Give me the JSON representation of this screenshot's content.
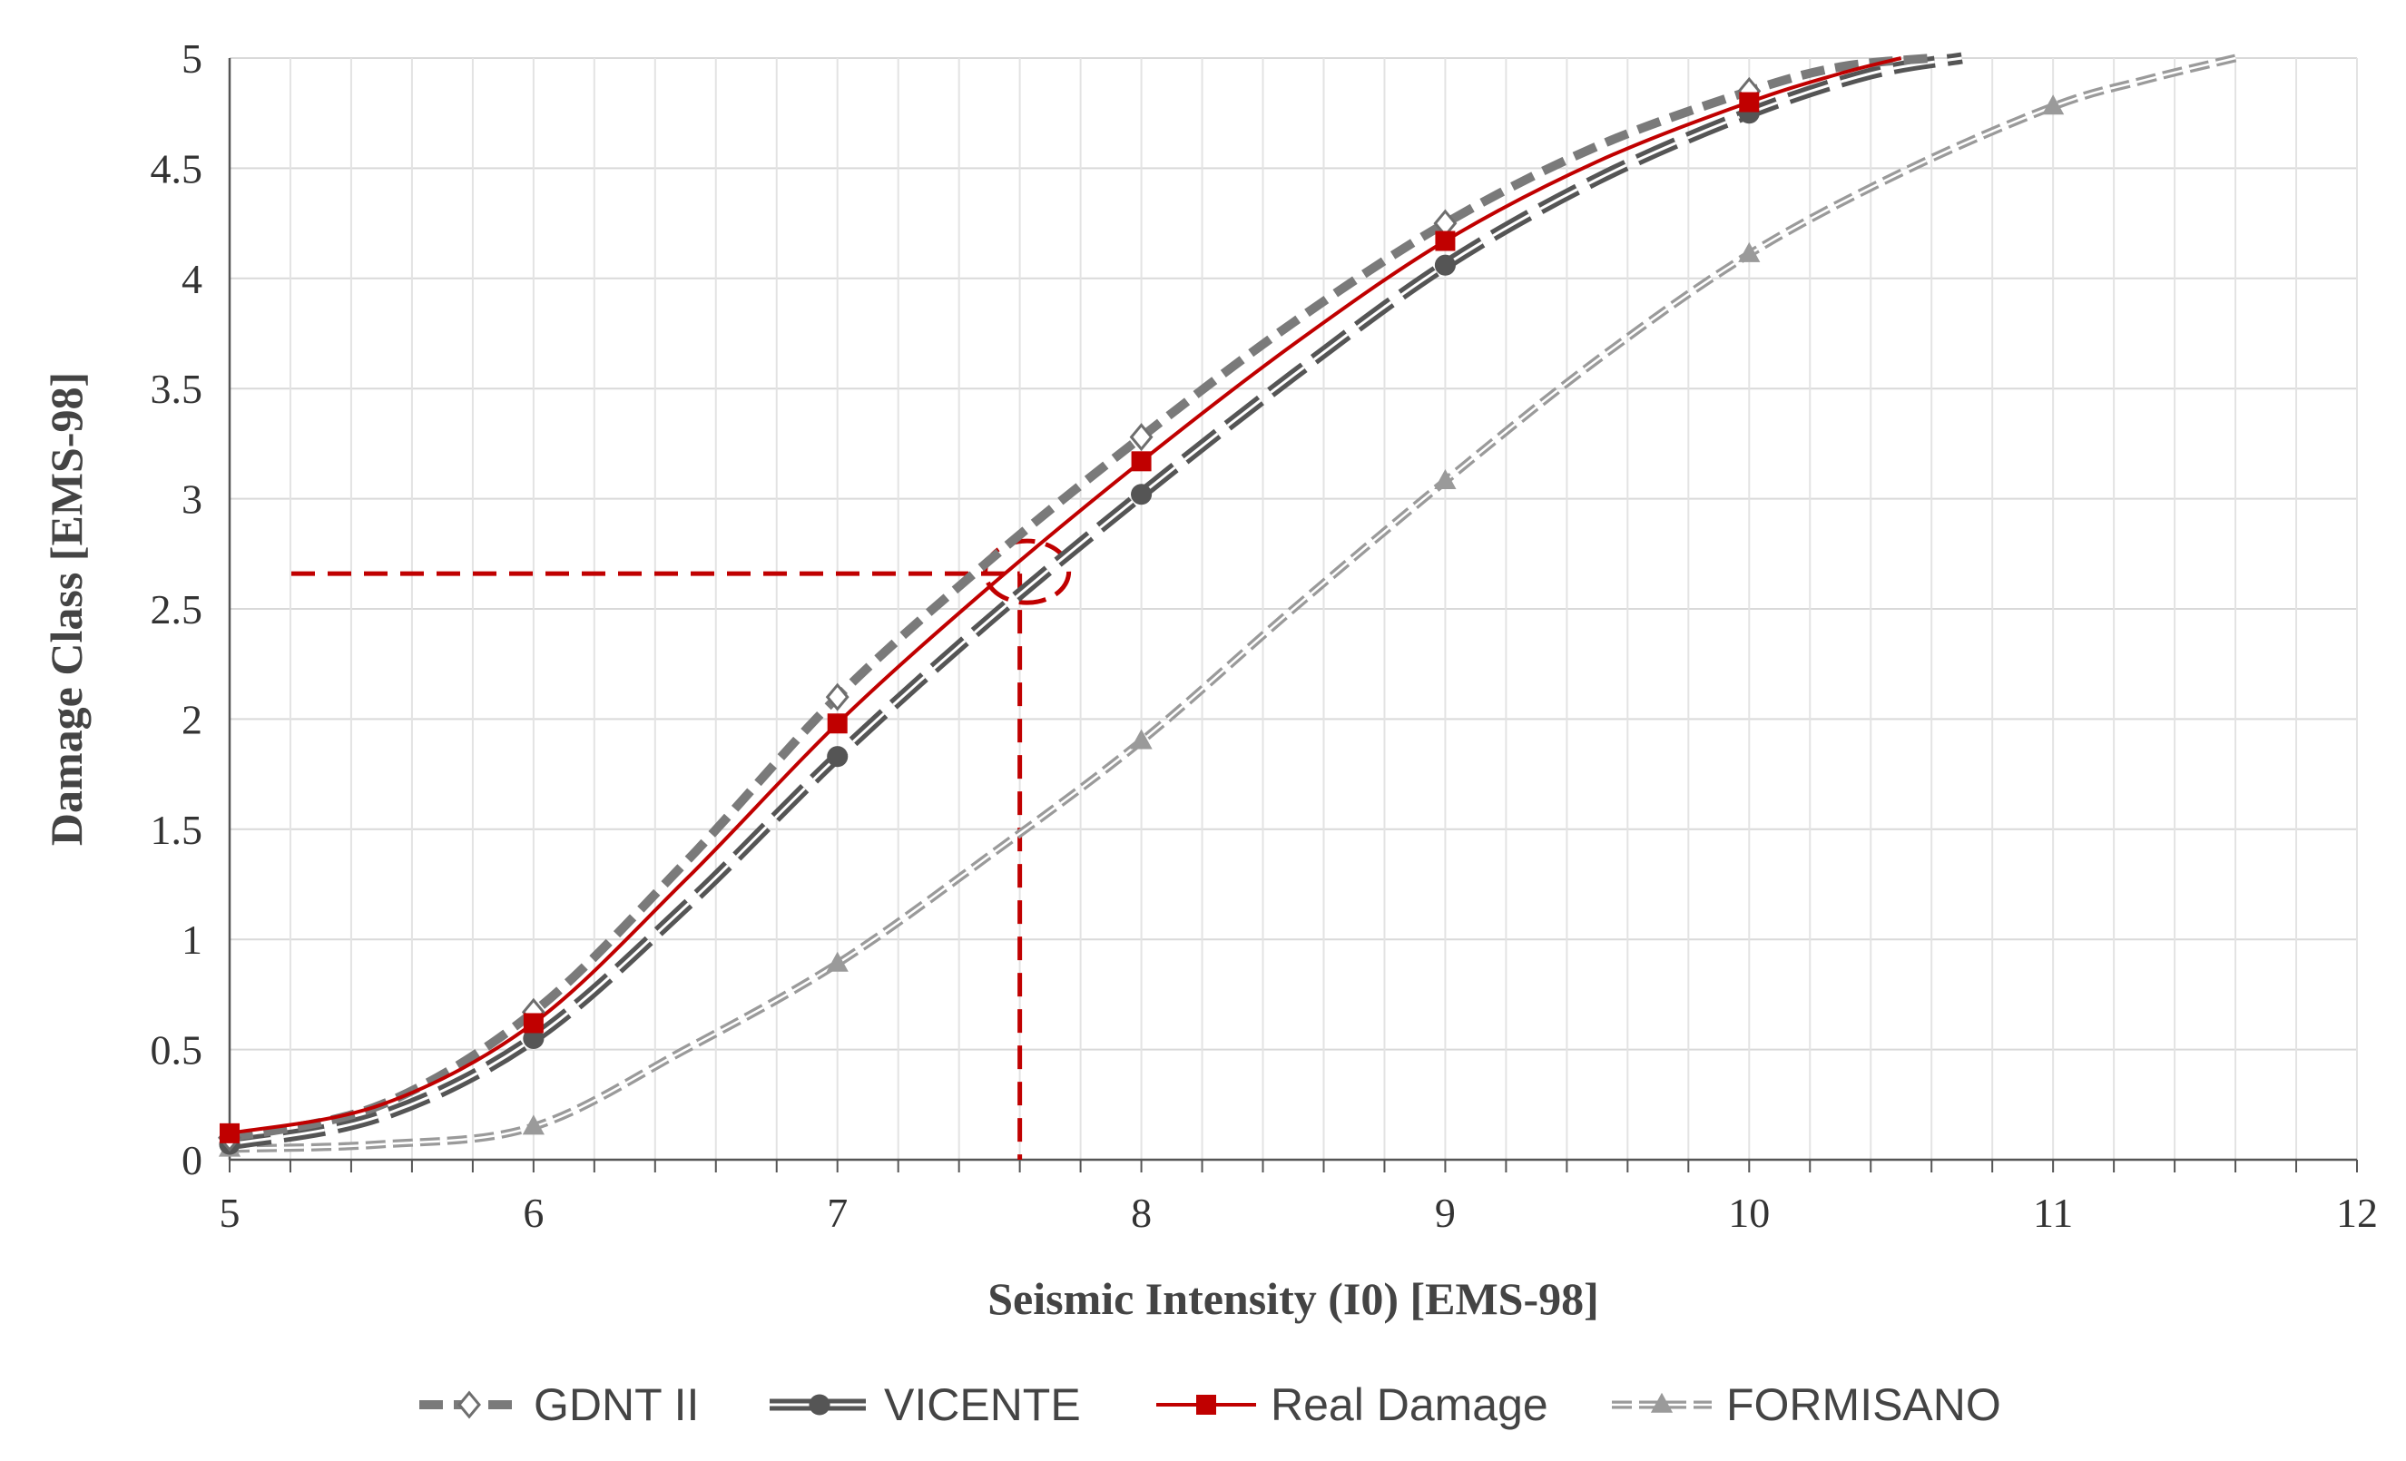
{
  "chart_data": {
    "type": "line",
    "title": "",
    "xlabel": "Seismic Intensity (I0) [EMS-98]",
    "ylabel": "Damage Class [EMS-98]",
    "xlim": [
      5,
      12
    ],
    "ylim": [
      0,
      5
    ],
    "x_ticks": [
      5,
      6,
      7,
      8,
      9,
      10,
      11,
      12
    ],
    "y_ticks": [
      0,
      0.5,
      1,
      1.5,
      2,
      2.5,
      3,
      3.5,
      4,
      4.5,
      5
    ],
    "x_tick_labels": [
      "5",
      "6",
      "7",
      "8",
      "9",
      "10",
      "11",
      "12"
    ],
    "y_tick_labels": [
      "0",
      "0.5",
      "1",
      "1.5",
      "2",
      "2.5",
      "3",
      "3.5",
      "4",
      "4.5",
      "5"
    ],
    "grid": true,
    "legend_position": "bottom",
    "series": [
      {
        "name": "GDNT II",
        "color": "#7a7a7a",
        "marker": "diamond-open",
        "line": "dashed",
        "marker_x": [
          5,
          6,
          7,
          8,
          9,
          10
        ],
        "marker_y": [
          0.1,
          0.67,
          2.1,
          3.28,
          4.25,
          4.85
        ],
        "curve": [
          [
            5,
            0.1
          ],
          [
            5.5,
            0.25
          ],
          [
            6,
            0.67
          ],
          [
            6.5,
            1.35
          ],
          [
            7,
            2.1
          ],
          [
            7.5,
            2.72
          ],
          [
            8,
            3.28
          ],
          [
            8.5,
            3.8
          ],
          [
            9,
            4.25
          ],
          [
            9.5,
            4.6
          ],
          [
            10,
            4.85
          ],
          [
            10.3,
            4.96
          ],
          [
            10.6,
            5.0
          ]
        ]
      },
      {
        "name": "VICENTE",
        "color": "#555555",
        "marker": "circle",
        "line": "long-dash-double",
        "marker_x": [
          5,
          6,
          7,
          8,
          9,
          10
        ],
        "marker_y": [
          0.07,
          0.55,
          1.83,
          3.02,
          4.06,
          4.75
        ],
        "curve": [
          [
            5,
            0.07
          ],
          [
            5.5,
            0.2
          ],
          [
            6,
            0.55
          ],
          [
            6.5,
            1.15
          ],
          [
            7,
            1.83
          ],
          [
            7.5,
            2.45
          ],
          [
            8,
            3.02
          ],
          [
            8.5,
            3.56
          ],
          [
            9,
            4.06
          ],
          [
            9.5,
            4.45
          ],
          [
            10,
            4.75
          ],
          [
            10.4,
            4.93
          ],
          [
            10.7,
            5.0
          ]
        ]
      },
      {
        "name": "Real Damage",
        "color": "#c00000",
        "marker": "square",
        "line": "solid",
        "marker_x": [
          5,
          6,
          7,
          8,
          9,
          10
        ],
        "marker_y": [
          0.12,
          0.62,
          1.98,
          3.17,
          4.17,
          4.8
        ],
        "curve": [
          [
            5,
            0.12
          ],
          [
            5.5,
            0.25
          ],
          [
            6,
            0.62
          ],
          [
            6.5,
            1.27
          ],
          [
            7,
            1.98
          ],
          [
            7.5,
            2.6
          ],
          [
            8,
            3.17
          ],
          [
            8.5,
            3.7
          ],
          [
            9,
            4.17
          ],
          [
            9.5,
            4.53
          ],
          [
            10,
            4.8
          ],
          [
            10.3,
            4.93
          ],
          [
            10.5,
            5.0
          ]
        ]
      },
      {
        "name": "FORMISANO",
        "color": "#9a9a9a",
        "marker": "triangle",
        "line": "dashed-double",
        "marker_x": [
          5,
          6,
          7,
          8,
          9,
          10,
          11
        ],
        "marker_y": [
          0.05,
          0.15,
          0.89,
          1.9,
          3.08,
          4.11,
          4.78
        ],
        "curve": [
          [
            5,
            0.05
          ],
          [
            5.5,
            0.07
          ],
          [
            6,
            0.15
          ],
          [
            6.5,
            0.5
          ],
          [
            7,
            0.89
          ],
          [
            7.5,
            1.38
          ],
          [
            8,
            1.9
          ],
          [
            8.5,
            2.5
          ],
          [
            9,
            3.08
          ],
          [
            9.5,
            3.63
          ],
          [
            10,
            4.11
          ],
          [
            10.5,
            4.48
          ],
          [
            11,
            4.78
          ],
          [
            11.3,
            4.9
          ],
          [
            11.6,
            5.0
          ]
        ]
      }
    ],
    "annotation": {
      "intensity": 7.6,
      "damage": 2.66,
      "color": "#c00000"
    }
  }
}
